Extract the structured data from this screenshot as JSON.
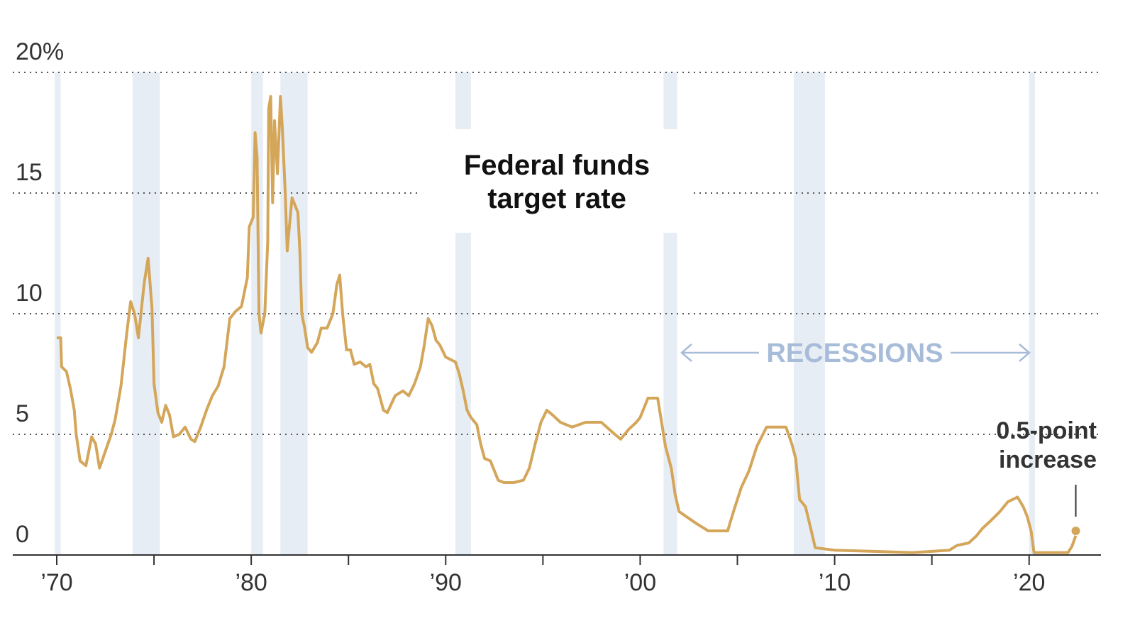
{
  "chart_data": {
    "type": "line",
    "title_lines": [
      "Federal funds",
      "target rate"
    ],
    "xlabel": "",
    "ylabel": "",
    "xlim": [
      1970,
      2022.6
    ],
    "ylim": [
      0,
      20
    ],
    "y_ticks": [
      {
        "value": 0,
        "label": "0"
      },
      {
        "value": 5,
        "label": "5"
      },
      {
        "value": 10,
        "label": "10"
      },
      {
        "value": 15,
        "label": "15"
      },
      {
        "value": 20,
        "label": "20%"
      }
    ],
    "x_ticks": [
      {
        "value": 1970,
        "label": "’70"
      },
      {
        "value": 1980,
        "label": "’80"
      },
      {
        "value": 1990,
        "label": "’90"
      },
      {
        "value": 2000,
        "label": "’00"
      },
      {
        "value": 2010,
        "label": "’10"
      },
      {
        "value": 2020,
        "label": "’20"
      }
    ],
    "x_minor_ticks": [
      1975,
      1985,
      1995,
      2005,
      2015
    ],
    "grid": "dotted horizontal",
    "line_color": "#d4a65a",
    "recession_color": "#e7edf5",
    "recessions": [
      [
        1969.9,
        1970.2
      ],
      [
        1973.9,
        1975.3
      ],
      [
        1980.0,
        1980.6
      ],
      [
        1981.5,
        1982.9
      ],
      [
        1990.5,
        1991.3
      ],
      [
        2001.2,
        2001.9
      ],
      [
        2007.9,
        2009.5
      ],
      [
        2020.0,
        2020.3
      ]
    ],
    "recessions_label": "RECESSIONS",
    "annotation": {
      "lines": [
        "0.5-point",
        "increase"
      ],
      "x": 2022.4,
      "y": 1.0
    },
    "series": [
      {
        "values": [
          [
            1970.0,
            9.0
          ],
          [
            1970.2,
            9.0
          ],
          [
            1970.25,
            7.8
          ],
          [
            1970.5,
            7.6
          ],
          [
            1970.7,
            6.9
          ],
          [
            1970.9,
            6.0
          ],
          [
            1971.0,
            5.0
          ],
          [
            1971.2,
            3.9
          ],
          [
            1971.5,
            3.7
          ],
          [
            1971.8,
            4.9
          ],
          [
            1972.0,
            4.6
          ],
          [
            1972.2,
            3.6
          ],
          [
            1972.5,
            4.3
          ],
          [
            1972.8,
            5.0
          ],
          [
            1973.0,
            5.6
          ],
          [
            1973.3,
            7.0
          ],
          [
            1973.6,
            9.2
          ],
          [
            1973.8,
            10.5
          ],
          [
            1974.0,
            10.0
          ],
          [
            1974.2,
            9.0
          ],
          [
            1974.5,
            11.3
          ],
          [
            1974.7,
            12.3
          ],
          [
            1974.9,
            10.2
          ],
          [
            1975.0,
            7.1
          ],
          [
            1975.2,
            5.9
          ],
          [
            1975.4,
            5.5
          ],
          [
            1975.6,
            6.2
          ],
          [
            1975.8,
            5.8
          ],
          [
            1976.0,
            4.9
          ],
          [
            1976.3,
            5.0
          ],
          [
            1976.6,
            5.3
          ],
          [
            1976.9,
            4.8
          ],
          [
            1977.1,
            4.7
          ],
          [
            1977.4,
            5.3
          ],
          [
            1977.7,
            6.0
          ],
          [
            1978.0,
            6.6
          ],
          [
            1978.3,
            7.0
          ],
          [
            1978.6,
            7.8
          ],
          [
            1978.9,
            9.8
          ],
          [
            1979.2,
            10.1
          ],
          [
            1979.5,
            10.3
          ],
          [
            1979.8,
            11.5
          ],
          [
            1979.9,
            13.6
          ],
          [
            1980.1,
            14.0
          ],
          [
            1980.2,
            17.5
          ],
          [
            1980.3,
            16.5
          ],
          [
            1980.4,
            10.0
          ],
          [
            1980.5,
            9.2
          ],
          [
            1980.7,
            10.0
          ],
          [
            1980.85,
            13.0
          ],
          [
            1980.9,
            18.5
          ],
          [
            1981.0,
            19.0
          ],
          [
            1981.1,
            14.6
          ],
          [
            1981.2,
            18.0
          ],
          [
            1981.35,
            15.8
          ],
          [
            1981.5,
            19.0
          ],
          [
            1981.6,
            17.7
          ],
          [
            1981.75,
            15.0
          ],
          [
            1981.85,
            12.6
          ],
          [
            1981.95,
            13.5
          ],
          [
            1982.1,
            14.8
          ],
          [
            1982.25,
            14.5
          ],
          [
            1982.4,
            14.2
          ],
          [
            1982.5,
            12.6
          ],
          [
            1982.6,
            10.0
          ],
          [
            1982.75,
            9.4
          ],
          [
            1982.9,
            8.6
          ],
          [
            1983.1,
            8.4
          ],
          [
            1983.4,
            8.8
          ],
          [
            1983.6,
            9.4
          ],
          [
            1983.9,
            9.4
          ],
          [
            1984.2,
            10.0
          ],
          [
            1984.4,
            11.2
          ],
          [
            1984.55,
            11.6
          ],
          [
            1984.7,
            10.0
          ],
          [
            1984.9,
            8.5
          ],
          [
            1985.1,
            8.5
          ],
          [
            1985.3,
            7.9
          ],
          [
            1985.6,
            8.0
          ],
          [
            1985.9,
            7.8
          ],
          [
            1986.1,
            7.9
          ],
          [
            1986.3,
            7.1
          ],
          [
            1986.5,
            6.9
          ],
          [
            1986.8,
            6.0
          ],
          [
            1987.0,
            5.9
          ],
          [
            1987.4,
            6.6
          ],
          [
            1987.6,
            6.7
          ],
          [
            1987.8,
            6.8
          ],
          [
            1988.1,
            6.6
          ],
          [
            1988.4,
            7.1
          ],
          [
            1988.7,
            7.8
          ],
          [
            1988.9,
            8.7
          ],
          [
            1989.1,
            9.8
          ],
          [
            1989.3,
            9.5
          ],
          [
            1989.5,
            8.9
          ],
          [
            1989.7,
            8.7
          ],
          [
            1990.0,
            8.2
          ],
          [
            1990.5,
            8.0
          ],
          [
            1990.7,
            7.5
          ],
          [
            1990.9,
            6.8
          ],
          [
            1991.1,
            6.0
          ],
          [
            1991.3,
            5.7
          ],
          [
            1991.6,
            5.4
          ],
          [
            1991.8,
            4.6
          ],
          [
            1992.0,
            4.0
          ],
          [
            1992.3,
            3.9
          ],
          [
            1992.7,
            3.1
          ],
          [
            1993.0,
            3.0
          ],
          [
            1993.5,
            3.0
          ],
          [
            1994.0,
            3.1
          ],
          [
            1994.3,
            3.6
          ],
          [
            1994.6,
            4.6
          ],
          [
            1994.9,
            5.5
          ],
          [
            1995.2,
            6.0
          ],
          [
            1995.5,
            5.8
          ],
          [
            1995.9,
            5.5
          ],
          [
            1996.5,
            5.3
          ],
          [
            1997.2,
            5.5
          ],
          [
            1998.0,
            5.5
          ],
          [
            1998.7,
            5.0
          ],
          [
            1999.0,
            4.8
          ],
          [
            1999.4,
            5.2
          ],
          [
            1999.8,
            5.5
          ],
          [
            2000.0,
            5.7
          ],
          [
            2000.4,
            6.5
          ],
          [
            2000.9,
            6.5
          ],
          [
            2001.1,
            5.5
          ],
          [
            2001.3,
            4.5
          ],
          [
            2001.6,
            3.6
          ],
          [
            2001.8,
            2.5
          ],
          [
            2002.0,
            1.8
          ],
          [
            2002.9,
            1.3
          ],
          [
            2003.5,
            1.0
          ],
          [
            2004.5,
            1.0
          ],
          [
            2004.8,
            1.8
          ],
          [
            2005.2,
            2.8
          ],
          [
            2005.6,
            3.5
          ],
          [
            2006.0,
            4.5
          ],
          [
            2006.5,
            5.3
          ],
          [
            2007.5,
            5.3
          ],
          [
            2007.8,
            4.6
          ],
          [
            2008.0,
            4.0
          ],
          [
            2008.2,
            2.3
          ],
          [
            2008.5,
            2.0
          ],
          [
            2008.8,
            1.0
          ],
          [
            2009.0,
            0.3
          ],
          [
            2010.0,
            0.2
          ],
          [
            2012.0,
            0.15
          ],
          [
            2014.0,
            0.1
          ],
          [
            2015.9,
            0.2
          ],
          [
            2016.3,
            0.4
          ],
          [
            2016.9,
            0.5
          ],
          [
            2017.3,
            0.8
          ],
          [
            2017.6,
            1.1
          ],
          [
            2018.0,
            1.4
          ],
          [
            2018.5,
            1.8
          ],
          [
            2018.9,
            2.2
          ],
          [
            2019.4,
            2.4
          ],
          [
            2019.7,
            2.0
          ],
          [
            2019.9,
            1.6
          ],
          [
            2020.1,
            1.0
          ],
          [
            2020.25,
            0.1
          ],
          [
            2021.0,
            0.1
          ],
          [
            2022.0,
            0.1
          ],
          [
            2022.2,
            0.35
          ],
          [
            2022.4,
            0.8
          ]
        ]
      }
    ]
  }
}
